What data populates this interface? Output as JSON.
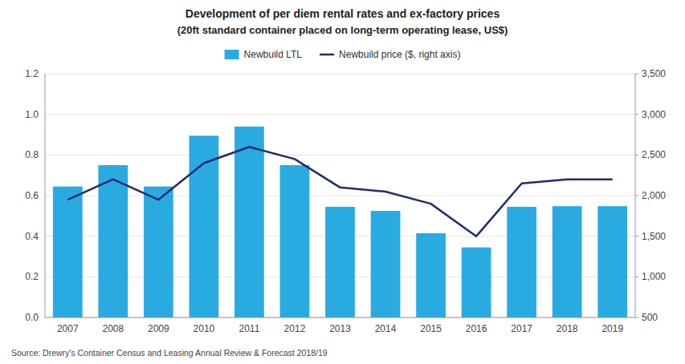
{
  "chart_data": {
    "type": "bar",
    "title": "Development of per diem rental rates and ex-factory prices",
    "subtitle": "(20ft standard container placed on long-term operating lease, US$)",
    "categories": [
      "2007",
      "2008",
      "2009",
      "2010",
      "2011",
      "2012",
      "2013",
      "2014",
      "2015",
      "2016",
      "2017",
      "2018",
      "2019"
    ],
    "series": [
      {
        "name": "Newbuild LTL",
        "type": "bar",
        "color": "#29abe2",
        "values": [
          0.645,
          0.75,
          0.645,
          0.895,
          0.94,
          0.75,
          0.545,
          0.525,
          0.415,
          0.345,
          0.545,
          0.548,
          0.548
        ]
      },
      {
        "name": "Newbuild price ($, right axis)",
        "type": "line",
        "color": "#1f2d6e",
        "axis": "y2",
        "values": [
          1950,
          2200,
          1950,
          2400,
          2600,
          2450,
          2100,
          2050,
          1900,
          1500,
          2150,
          2200,
          2200
        ]
      }
    ],
    "ylim": [
      0.0,
      1.2
    ],
    "yticks": [
      {
        "value": 0,
        "label": "0.0"
      },
      0.2,
      0.4,
      0.6,
      0.8,
      {
        "value": 1,
        "label": "1.0"
      },
      1.2
    ],
    "y2lim": [
      500,
      3500
    ],
    "y2ticks": [
      500,
      {
        "value": 1000,
        "label": "1,000"
      },
      {
        "value": 1500,
        "label": "1,500"
      },
      {
        "value": 2000,
        "label": "2,000"
      },
      {
        "value": 2500,
        "label": "2,500"
      },
      {
        "value": 3000,
        "label": "3,000"
      },
      {
        "value": 3500,
        "label": "3,500"
      }
    ],
    "grid": true,
    "legend": "top",
    "annotations": [
      "Source: Drewry's Container Census and Leasing Annual Review & Forecast 2018/19"
    ]
  }
}
